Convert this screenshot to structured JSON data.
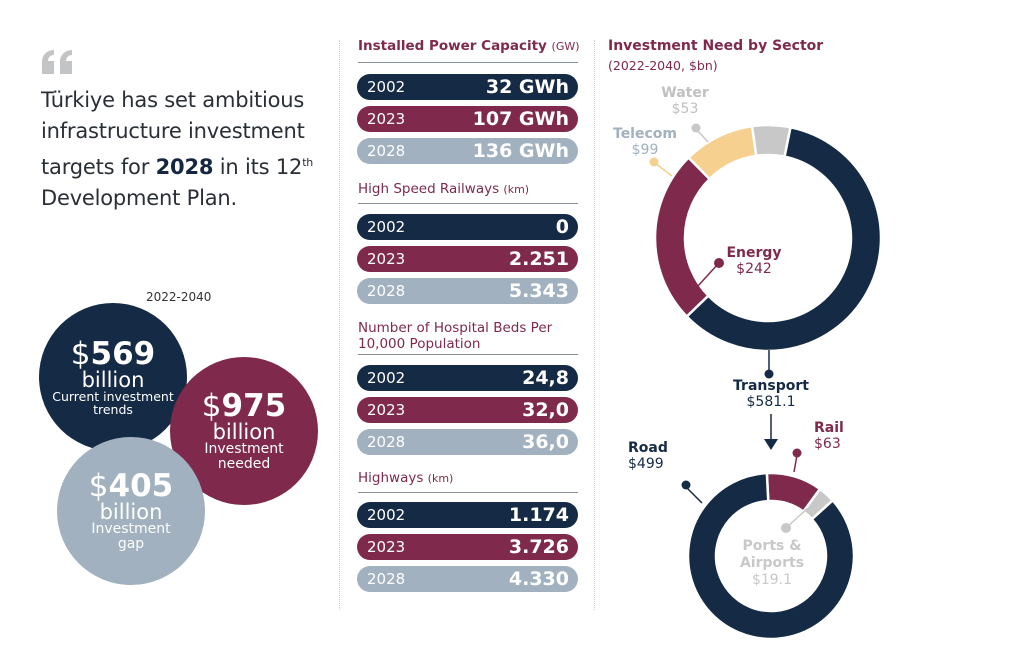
{
  "intro": {
    "text_before": "Türkiye has set ambitious infrastructure investment targets for ",
    "highlight": "2028",
    "text_after": " in its 12",
    "superscript": "th",
    "text_end": " Development Plan."
  },
  "investment_summary": {
    "period": "2022-2040",
    "currency_symbol": "$",
    "bubbles": [
      {
        "amount": "569",
        "unit": "billion",
        "desc_line1": "Current investment",
        "desc_line2": "trends",
        "color": "#152a45"
      },
      {
        "amount": "975",
        "unit": "billion",
        "desc_line1": "Investment",
        "desc_line2": "needed",
        "color": "#7f2a4c"
      },
      {
        "amount": "405",
        "unit": "billion",
        "desc_line1": "Investment",
        "desc_line2": "gap",
        "color": "#a1b1bf"
      }
    ]
  },
  "metrics": [
    {
      "title": "Installed Power Capacity",
      "unit": "(GW)",
      "rows": [
        {
          "year": "2002",
          "value": "32 GWh"
        },
        {
          "year": "2023",
          "value": "107 GWh"
        },
        {
          "year": "2028",
          "value": "136 GWh"
        }
      ]
    },
    {
      "title": "High Speed Railways",
      "unit": "(km)",
      "rows": [
        {
          "year": "2002",
          "value": "0"
        },
        {
          "year": "2023",
          "value": "2.251"
        },
        {
          "year": "2028",
          "value": "5.343"
        }
      ]
    },
    {
      "title": "Number of Hospital Beds Per 10,000 Population",
      "unit": "",
      "rows": [
        {
          "year": "2002",
          "value": "24,8"
        },
        {
          "year": "2023",
          "value": "32,0"
        },
        {
          "year": "2028",
          "value": "36,0"
        }
      ]
    },
    {
      "title": "Highways",
      "unit": "(km)",
      "rows": [
        {
          "year": "2002",
          "value": "1.174"
        },
        {
          "year": "2023",
          "value": "3.726"
        },
        {
          "year": "2028",
          "value": "4.330"
        }
      ]
    }
  ],
  "colors": {
    "navy": "#152a45",
    "wine": "#7f2a4c",
    "grey": "#a1b1bf",
    "telecom": "#f6d08e",
    "water": "#c8c8c8"
  },
  "chart_data": [
    {
      "type": "pie",
      "title": "Investment Need by Sector",
      "subtitle": "(2022-2040, $bn)",
      "categories": [
        "Transport",
        "Energy",
        "Telecom",
        "Water"
      ],
      "values": [
        581.1,
        242,
        99,
        53
      ],
      "labels": [
        "$581.1",
        "$242",
        "$99",
        "$53"
      ],
      "colors": [
        "#152a45",
        "#7f2a4c",
        "#f6d08e",
        "#c8c8c8"
      ],
      "donut": true
    },
    {
      "type": "pie",
      "title": "Transport",
      "total_label": "$581.1",
      "categories": [
        "Road",
        "Rail",
        "Ports & Airports"
      ],
      "values": [
        499,
        63,
        19.1
      ],
      "labels": [
        "$499",
        "$63",
        "$19.1"
      ],
      "colors": [
        "#152a45",
        "#7f2a4c",
        "#c8c8c8"
      ],
      "donut": true
    }
  ]
}
